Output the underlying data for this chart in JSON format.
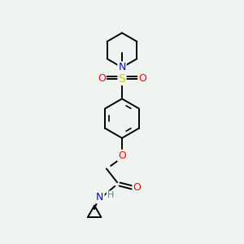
{
  "background_color": "#f0f4f0",
  "bond_color": "#000000",
  "atom_colors": {
    "N": "#0000ff",
    "O": "#ff0000",
    "S": "#cccc00",
    "H": "#558888",
    "C": "#000000"
  },
  "lw": 1.4,
  "fontsize": 9
}
